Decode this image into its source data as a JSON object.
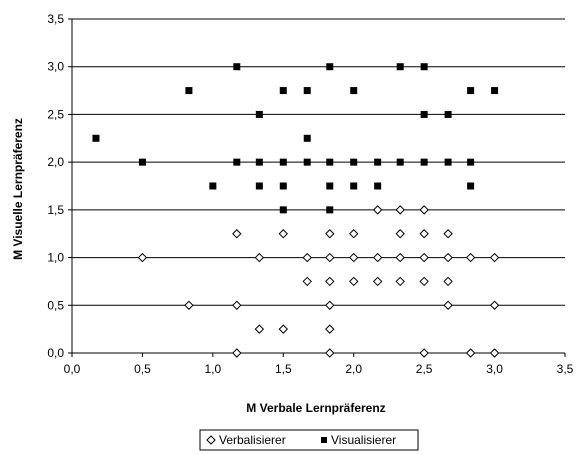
{
  "chart_data": {
    "type": "scatter",
    "title": "",
    "xlabel": "M Verbale Lernpräferenz",
    "ylabel": "M Visuelle Lernpräferenz",
    "xlim": [
      0,
      3.5
    ],
    "ylim": [
      0,
      3.5
    ],
    "x_ticks": [
      "0,0",
      "0,5",
      "1,0",
      "1,5",
      "2,0",
      "2,5",
      "3,0",
      "3,5"
    ],
    "y_ticks": [
      "0,0",
      "0,5",
      "1,0",
      "1,5",
      "2,0",
      "2,5",
      "3,0",
      "3,5"
    ],
    "grid": "horizontal",
    "legend_position": "bottom",
    "series": [
      {
        "name": "Verbalisierer",
        "marker": "diamond-open",
        "color": "#000000",
        "points": [
          [
            0.5,
            1.0
          ],
          [
            0.83,
            0.5
          ],
          [
            1.17,
            1.25
          ],
          [
            1.17,
            0.5
          ],
          [
            1.17,
            0.0
          ],
          [
            1.33,
            1.0
          ],
          [
            1.33,
            0.25
          ],
          [
            1.5,
            1.25
          ],
          [
            1.5,
            0.25
          ],
          [
            1.67,
            1.0
          ],
          [
            1.67,
            0.75
          ],
          [
            1.83,
            1.25
          ],
          [
            1.83,
            1.0
          ],
          [
            1.83,
            0.75
          ],
          [
            1.83,
            0.5
          ],
          [
            1.83,
            0.25
          ],
          [
            1.83,
            0.0
          ],
          [
            2.0,
            1.25
          ],
          [
            2.0,
            1.0
          ],
          [
            2.0,
            0.75
          ],
          [
            2.17,
            1.5
          ],
          [
            2.17,
            1.0
          ],
          [
            2.17,
            0.75
          ],
          [
            2.33,
            1.5
          ],
          [
            2.33,
            1.25
          ],
          [
            2.33,
            1.0
          ],
          [
            2.33,
            0.75
          ],
          [
            2.5,
            1.5
          ],
          [
            2.5,
            1.25
          ],
          [
            2.5,
            1.0
          ],
          [
            2.5,
            0.75
          ],
          [
            2.5,
            0.0
          ],
          [
            2.67,
            1.25
          ],
          [
            2.67,
            1.0
          ],
          [
            2.67,
            0.75
          ],
          [
            2.67,
            0.5
          ],
          [
            2.83,
            1.0
          ],
          [
            2.83,
            0.0
          ],
          [
            3.0,
            1.0
          ],
          [
            3.0,
            0.5
          ],
          [
            3.0,
            0.0
          ]
        ]
      },
      {
        "name": "Visualisierer",
        "marker": "square-filled",
        "color": "#000000",
        "points": [
          [
            0.17,
            2.25
          ],
          [
            0.5,
            2.0
          ],
          [
            0.83,
            2.75
          ],
          [
            1.0,
            1.75
          ],
          [
            1.17,
            3.0
          ],
          [
            1.17,
            2.0
          ],
          [
            1.33,
            2.5
          ],
          [
            1.33,
            2.0
          ],
          [
            1.33,
            1.75
          ],
          [
            1.5,
            2.75
          ],
          [
            1.5,
            2.0
          ],
          [
            1.5,
            1.75
          ],
          [
            1.5,
            1.5
          ],
          [
            1.67,
            2.75
          ],
          [
            1.67,
            2.25
          ],
          [
            1.67,
            2.0
          ],
          [
            1.83,
            3.0
          ],
          [
            1.83,
            2.0
          ],
          [
            1.83,
            1.75
          ],
          [
            1.83,
            1.5
          ],
          [
            2.0,
            2.75
          ],
          [
            2.0,
            2.0
          ],
          [
            2.0,
            1.75
          ],
          [
            2.17,
            2.0
          ],
          [
            2.17,
            1.75
          ],
          [
            2.33,
            3.0
          ],
          [
            2.33,
            2.0
          ],
          [
            2.5,
            3.0
          ],
          [
            2.5,
            2.5
          ],
          [
            2.5,
            2.0
          ],
          [
            2.67,
            2.5
          ],
          [
            2.67,
            2.0
          ],
          [
            2.83,
            2.75
          ],
          [
            2.83,
            2.0
          ],
          [
            2.83,
            1.75
          ],
          [
            3.0,
            2.75
          ]
        ]
      }
    ]
  }
}
